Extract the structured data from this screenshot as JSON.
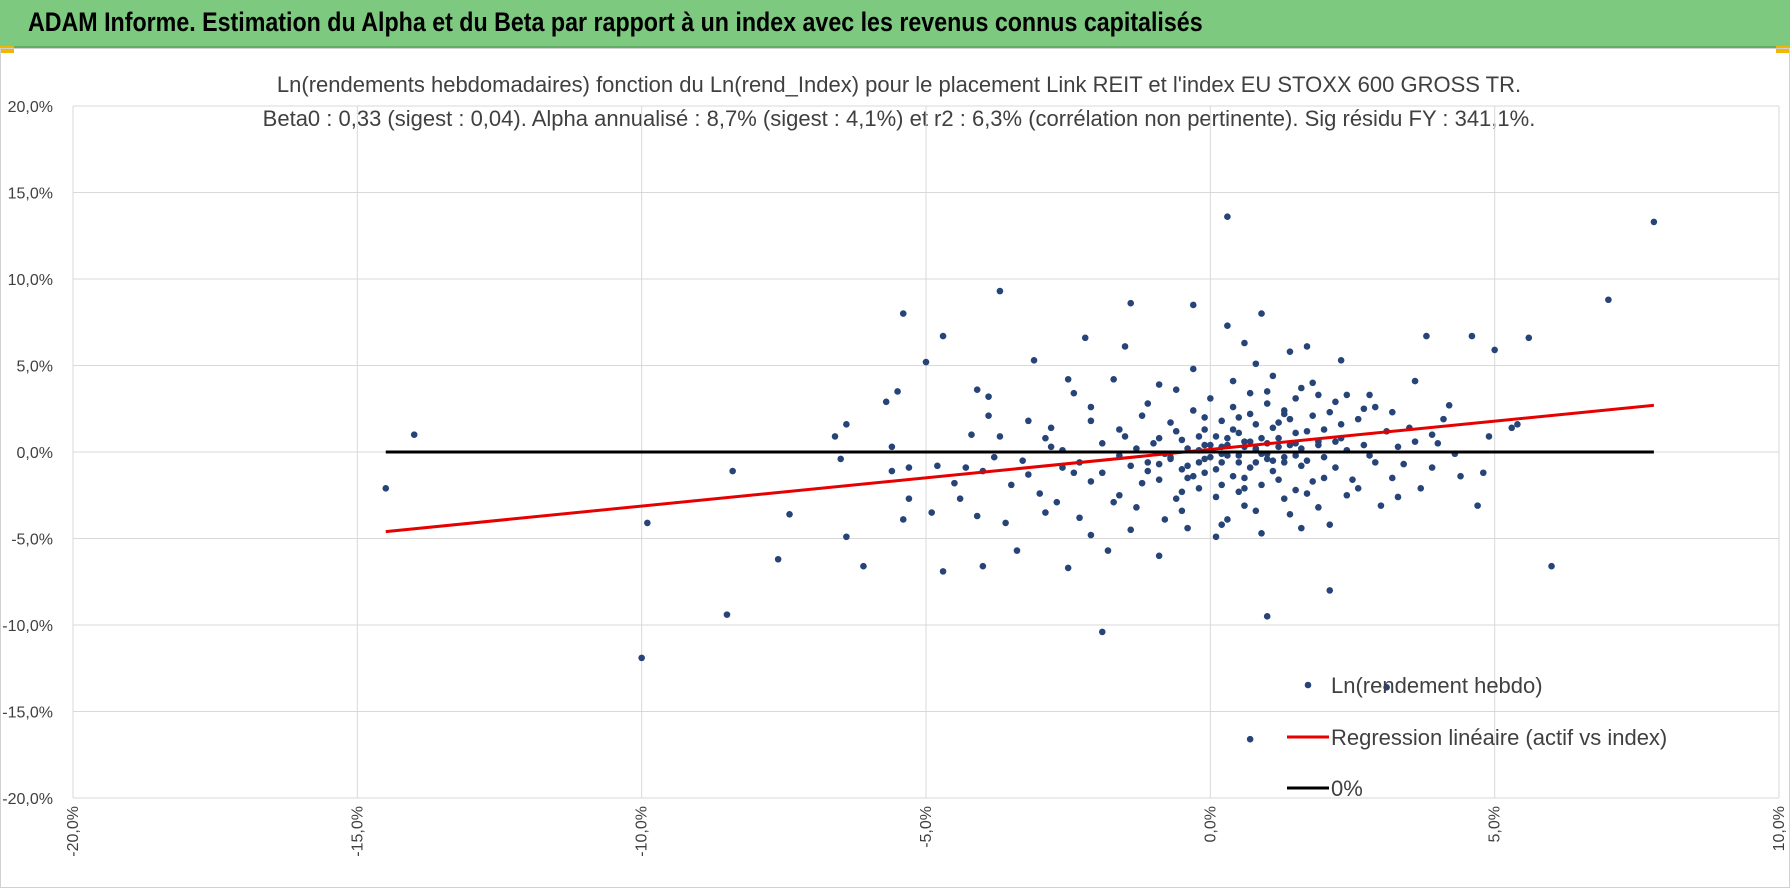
{
  "banner": {
    "title": "ADAM Informe. Estimation du Alpha et du Beta par rapport à un index avec les revenus connus capitalisés"
  },
  "colors": {
    "banner": "#7dc97f",
    "points": "#264478",
    "regression": "#e60000",
    "zero_line": "#000000",
    "grid": "#d9d9d9"
  },
  "chart_data": {
    "type": "scatter",
    "title": "Ln(rendements hebdomadaires) fonction du Ln(rend_Index) pour le placement Link REIT et l'index EU STOXX 600 GROSS TR.",
    "subtitle": "Beta0 : 0,33  (sigest : 0,04).  Alpha annualisé : 8,7% (sigest : 4,1%) et r2 : 6,3% (corrélation non pertinente). Sig résidu FY : 341,1%.",
    "xlim": [
      -20,
      10
    ],
    "ylim": [
      -20,
      20
    ],
    "x_ticks": [
      -20,
      -15,
      -10,
      -5,
      0,
      5,
      10
    ],
    "y_ticks": [
      20,
      15,
      10,
      5,
      0,
      -5,
      -10,
      -15,
      -20
    ],
    "x_tick_labels": [
      "-20,0%",
      "-15,0%",
      "-10,0%",
      "-5,0%",
      "0,0%",
      "5,0%",
      "10,0%"
    ],
    "y_tick_labels": [
      "20,0%",
      "15,0%",
      "10,0%",
      "5,0%",
      "0,0%",
      "-5,0%",
      "-10,0%",
      "-15,0%",
      "-20,0%"
    ],
    "grid": true,
    "legend": {
      "placement": "bottom-right",
      "items": [
        {
          "label": "Ln(rendement hebdo)",
          "kind": "marker"
        },
        {
          "label": "Regression linéaire (actif vs index)",
          "kind": "line-red"
        },
        {
          "label": "0%",
          "kind": "line-black"
        }
      ]
    },
    "series": [
      {
        "name": "Ln(rendement hebdo)",
        "type": "scatter",
        "points": [
          [
            -14.5,
            -2.1
          ],
          [
            -14,
            1
          ],
          [
            -10,
            -11.9
          ],
          [
            -9.9,
            -4.1
          ],
          [
            -8.5,
            -9.4
          ],
          [
            -8.4,
            -1.1
          ],
          [
            -7.6,
            -6.2
          ],
          [
            -7.4,
            -3.6
          ],
          [
            -6.6,
            0.9
          ],
          [
            -6.5,
            -0.4
          ],
          [
            -6.4,
            1.6
          ],
          [
            -6.4,
            -4.9
          ],
          [
            -6.1,
            -6.6
          ],
          [
            -5.7,
            2.9
          ],
          [
            -5.6,
            -1.1
          ],
          [
            -5.6,
            0.3
          ],
          [
            -5.5,
            3.5
          ],
          [
            -5.4,
            8
          ],
          [
            -5.4,
            -3.9
          ],
          [
            -5.3,
            -2.7
          ],
          [
            -5,
            5.2
          ],
          [
            -4.9,
            -3.5
          ],
          [
            -4.8,
            -0.8
          ],
          [
            -4.7,
            6.7
          ],
          [
            -4.7,
            -6.9
          ],
          [
            -4.4,
            -2.7
          ],
          [
            -4.3,
            -0.9
          ],
          [
            -4.2,
            1
          ],
          [
            -4.1,
            3.6
          ],
          [
            -4,
            -6.6
          ],
          [
            -4,
            -1.1
          ],
          [
            -3.9,
            3.2
          ],
          [
            -3.7,
            9.3
          ],
          [
            -3.6,
            -4.1
          ],
          [
            -3.4,
            -5.7
          ],
          [
            -3.2,
            1.8
          ],
          [
            -3.1,
            5.3
          ],
          [
            -2.8,
            0.3
          ],
          [
            -2.5,
            -6.7
          ],
          [
            -2.3,
            -3.8
          ],
          [
            -2.2,
            6.6
          ],
          [
            -2.1,
            2.6
          ],
          [
            -1.9,
            -10.4
          ],
          [
            -1.8,
            -5.7
          ],
          [
            -1.6,
            -2.5
          ],
          [
            -1.4,
            8.6
          ],
          [
            -1.1,
            -0.6
          ],
          [
            -0.9,
            -6
          ],
          [
            -0.5,
            -3.4
          ],
          [
            -0.4,
            -1.5
          ],
          [
            -0.3,
            8.5
          ],
          [
            -0.1,
            0.4
          ],
          [
            0.1,
            -4.9
          ],
          [
            0.2,
            -1.9
          ],
          [
            0.3,
            13.6
          ],
          [
            0.3,
            7.3
          ],
          [
            0.5,
            -2.3
          ],
          [
            0.7,
            2.2
          ],
          [
            0.8,
            -3.4
          ],
          [
            0.9,
            8
          ],
          [
            1,
            -9.5
          ],
          [
            1.2,
            -1.6
          ],
          [
            1.3,
            2.4
          ],
          [
            1.4,
            5.8
          ],
          [
            1.5,
            -2.2
          ],
          [
            1.6,
            -4.4
          ],
          [
            1.7,
            6.1
          ],
          [
            1.8,
            2.1
          ],
          [
            1.9,
            3.3
          ],
          [
            2,
            -1.5
          ],
          [
            2.1,
            -8
          ],
          [
            2.2,
            2.9
          ],
          [
            2.4,
            -2.5
          ],
          [
            2.6,
            1.9
          ],
          [
            2.8,
            3.3
          ],
          [
            3,
            -3.1
          ],
          [
            3.2,
            -1.5
          ],
          [
            3.3,
            0.3
          ],
          [
            3.5,
            1.4
          ],
          [
            3.7,
            -2.1
          ],
          [
            3.8,
            6.7
          ],
          [
            3.9,
            -0.9
          ],
          [
            4,
            0.5
          ],
          [
            4.2,
            2.7
          ],
          [
            4.4,
            -1.4
          ],
          [
            4.6,
            6.7
          ],
          [
            4.7,
            -3.1
          ],
          [
            4.8,
            -1.2
          ],
          [
            4.9,
            0.9
          ],
          [
            5,
            5.9
          ],
          [
            5.3,
            1.4
          ],
          [
            5.4,
            1.6
          ],
          [
            5.6,
            6.6
          ],
          [
            6,
            -6.6
          ],
          [
            7,
            8.8
          ],
          [
            7.8,
            13.3
          ],
          [
            0.7,
            -16.6
          ],
          [
            3.1,
            -13.6
          ],
          [
            -2.7,
            -2.9
          ],
          [
            -2.3,
            -0.6
          ],
          [
            -2.1,
            1.8
          ],
          [
            -2.1,
            -1.7
          ],
          [
            -1.5,
            0.9
          ],
          [
            -1.3,
            -3.2
          ],
          [
            -1.2,
            -1.8
          ],
          [
            -1.2,
            2.1
          ],
          [
            -0.9,
            -1.6
          ],
          [
            -0.9,
            0.8
          ],
          [
            -0.7,
            -0.4
          ],
          [
            -0.7,
            1.7
          ],
          [
            -0.6,
            -2.7
          ],
          [
            -0.5,
            0.7
          ],
          [
            -0.4,
            -0.8
          ],
          [
            -0.3,
            2.4
          ],
          [
            -0.2,
            -2.1
          ],
          [
            -0.2,
            0.1
          ],
          [
            -0.1,
            -1.2
          ],
          [
            -0.1,
            1.3
          ],
          [
            0,
            -0.3
          ],
          [
            0,
            3.1
          ],
          [
            0.1,
            0.9
          ],
          [
            0.1,
            -2.6
          ],
          [
            0.2,
            1.8
          ],
          [
            0.2,
            -0.6
          ],
          [
            0.3,
            0.4
          ],
          [
            0.4,
            -1.4
          ],
          [
            0.4,
            2.6
          ],
          [
            0.5,
            -0.2
          ],
          [
            0.5,
            1.1
          ],
          [
            0.6,
            -3.1
          ],
          [
            0.6,
            0.6
          ],
          [
            0.7,
            -0.9
          ],
          [
            0.7,
            3.4
          ],
          [
            0.8,
            0.2
          ],
          [
            0.8,
            1.6
          ],
          [
            0.9,
            -1.9
          ],
          [
            0.9,
            0.8
          ],
          [
            1,
            -0.4
          ],
          [
            1,
            2.8
          ],
          [
            1.1,
            -1.1
          ],
          [
            1.1,
            1.4
          ],
          [
            1.2,
            0.3
          ],
          [
            1.3,
            -2.7
          ],
          [
            1.3,
            -0.6
          ],
          [
            1.4,
            1.9
          ],
          [
            1.5,
            0.5
          ],
          [
            1.6,
            -0.8
          ],
          [
            1.6,
            3.7
          ],
          [
            1.7,
            1.2
          ],
          [
            1.8,
            -1.7
          ],
          [
            1.9,
            0.6
          ],
          [
            2,
            -0.3
          ],
          [
            2.1,
            2.3
          ],
          [
            2.2,
            -0.9
          ],
          [
            2.3,
            0.8
          ],
          [
            2.5,
            -1.6
          ],
          [
            2.7,
            0.4
          ],
          [
            2.9,
            -0.6
          ],
          [
            3.1,
            1.2
          ],
          [
            3.4,
            -0.7
          ],
          [
            3.6,
            0.6
          ],
          [
            -3.5,
            -1.9
          ],
          [
            -3,
            -2.4
          ],
          [
            -2.9,
            0.8
          ],
          [
            -2.6,
            -0.9
          ],
          [
            -2.4,
            3.4
          ],
          [
            -1.7,
            -2.9
          ],
          [
            -1.6,
            1.3
          ],
          [
            -1,
            0.5
          ],
          [
            -0.8,
            -3.9
          ],
          [
            -0.6,
            3.6
          ],
          [
            -0.4,
            -4.4
          ],
          [
            0.3,
            -3.9
          ],
          [
            0.4,
            4.1
          ],
          [
            0.9,
            -4.7
          ],
          [
            1.1,
            4.4
          ],
          [
            1.4,
            -3.6
          ],
          [
            1.8,
            4
          ],
          [
            2.6,
            -2.1
          ],
          [
            -1.9,
            -1.2
          ],
          [
            -1.6,
            -0.2
          ],
          [
            -1.1,
            -1.1
          ],
          [
            -0.8,
            -0.1
          ],
          [
            -0.6,
            1.2
          ],
          [
            -0.3,
            -1.4
          ],
          [
            -0.2,
            0.9
          ],
          [
            0,
            0.4
          ],
          [
            0.1,
            -1
          ],
          [
            0.3,
            -0.2
          ],
          [
            0.4,
            1.3
          ],
          [
            0.6,
            -1.5
          ],
          [
            0.7,
            0.6
          ],
          [
            0.9,
            -0.1
          ],
          [
            1,
            0.5
          ],
          [
            1.2,
            1.7
          ],
          [
            1.3,
            -0.3
          ],
          [
            1.5,
            1.1
          ],
          [
            1.7,
            -0.5
          ],
          [
            2,
            1.3
          ],
          [
            2.4,
            0.1
          ],
          [
            -0.5,
            -1
          ],
          [
            -0.1,
            -0.4
          ],
          [
            0.2,
            0.3
          ],
          [
            0.5,
            -0.6
          ],
          [
            0.8,
            0.1
          ],
          [
            1.1,
            -0.5
          ],
          [
            1.4,
            0.4
          ],
          [
            -1.3,
            0.2
          ],
          [
            -0.9,
            -0.7
          ],
          [
            -0.4,
            0.2
          ],
          [
            0.2,
            -0.1
          ],
          [
            0.6,
            0.3
          ],
          [
            1,
            -0.1
          ],
          [
            1.5,
            -0.2
          ],
          [
            1.9,
            0.4
          ],
          [
            -2.4,
            -1.2
          ],
          [
            -1.9,
            0.5
          ],
          [
            -1.4,
            -0.8
          ],
          [
            -0.7,
            -0.3
          ],
          [
            -0.2,
            -0.6
          ],
          [
            0.3,
            0.8
          ],
          [
            0.8,
            -0.6
          ],
          [
            1.2,
            0.8
          ],
          [
            1.6,
            0.2
          ],
          [
            2.2,
            0.6
          ],
          [
            2.8,
            -0.2
          ],
          [
            -3.3,
            -0.5
          ],
          [
            -2.6,
            0.1
          ],
          [
            -0.1,
            2
          ],
          [
            0.5,
            2
          ],
          [
            1.3,
            2.2
          ],
          [
            2.3,
            1.6
          ],
          [
            -1.1,
            2.8
          ],
          [
            -0.5,
            -2.3
          ],
          [
            0.6,
            -2.1
          ],
          [
            1.7,
            -2.4
          ],
          [
            3.2,
            2.3
          ],
          [
            3.9,
            1
          ],
          [
            -3.8,
            -0.3
          ],
          [
            -4.5,
            -1.8
          ],
          [
            -3.9,
            2.1
          ],
          [
            -2.9,
            -3.5
          ],
          [
            2.9,
            2.6
          ],
          [
            3.3,
            -2.6
          ],
          [
            -0.3,
            4.8
          ],
          [
            0.8,
            5.1
          ],
          [
            1.5,
            3.1
          ],
          [
            -1.7,
            4.2
          ],
          [
            -1.4,
            -4.5
          ],
          [
            0.2,
            -4.2
          ],
          [
            1.9,
            -3.2
          ],
          [
            2.4,
            3.3
          ],
          [
            -0.9,
            3.9
          ],
          [
            1,
            3.5
          ],
          [
            -2.1,
            -4.8
          ],
          [
            2.1,
            -4.2
          ],
          [
            -3.7,
            0.9
          ],
          [
            -3.2,
            -1.3
          ],
          [
            4.3,
            -0.1
          ],
          [
            4.1,
            1.9
          ],
          [
            -2.8,
            1.4
          ],
          [
            2.7,
            2.5
          ],
          [
            -2.5,
            4.2
          ],
          [
            -5.3,
            -0.9
          ],
          [
            -4.1,
            -3.7
          ],
          [
            -1.5,
            6.1
          ],
          [
            0.6,
            6.3
          ],
          [
            2.3,
            5.3
          ],
          [
            3.6,
            4.1
          ]
        ]
      },
      {
        "name": "Regression linéaire (actif vs index)",
        "type": "line",
        "points": [
          [
            -14.5,
            -4.6
          ],
          [
            7.8,
            2.7
          ]
        ]
      },
      {
        "name": "0%",
        "type": "line",
        "points": [
          [
            -14.5,
            0
          ],
          [
            7.8,
            0
          ]
        ]
      }
    ]
  }
}
